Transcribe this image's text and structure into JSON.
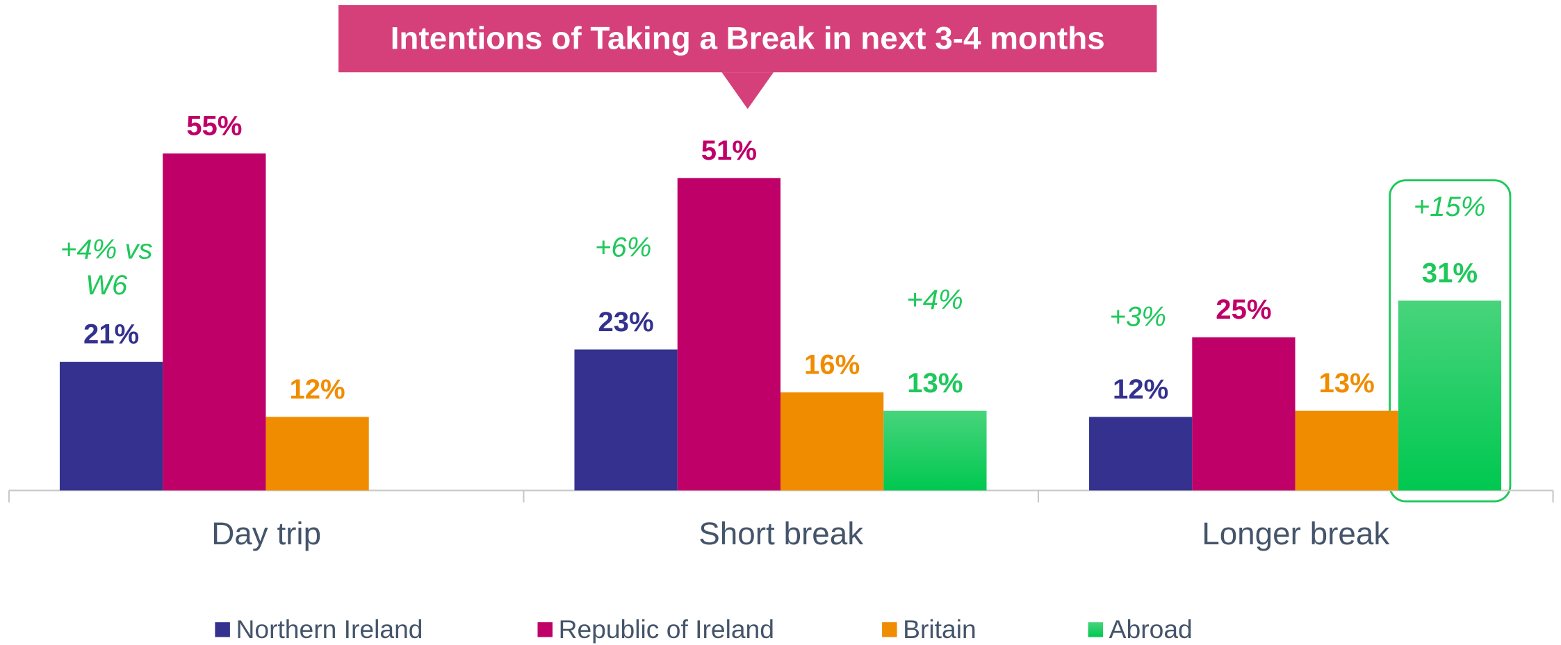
{
  "chart_data": {
    "type": "bar",
    "title": "Intentions of Taking a Break in next 3-4 months",
    "categories": [
      "Day trip",
      "Short break",
      "Longer break"
    ],
    "series": [
      {
        "name": "Northern Ireland",
        "color": "#34318f",
        "values": [
          21,
          23,
          12
        ],
        "value_labels": [
          "21%",
          "23%",
          "12%"
        ]
      },
      {
        "name": "Republic of Ireland",
        "color": "#bf0068",
        "values": [
          55,
          51,
          25
        ],
        "value_labels": [
          "55%",
          "51%",
          "25%"
        ]
      },
      {
        "name": "Britain",
        "color": "#f08c00",
        "values": [
          12,
          16,
          13
        ],
        "value_labels": [
          "12%",
          "16%",
          "13%"
        ]
      },
      {
        "name": "Abroad",
        "color": "#1ecf64",
        "values": [
          null,
          13,
          31
        ],
        "value_labels": [
          null,
          "13%",
          "31%"
        ]
      }
    ],
    "ylim": [
      0,
      60
    ],
    "annotations": [
      "+4% vs W6",
      "+6%",
      "+4%",
      "+3%",
      "+15%"
    ],
    "legend": "bottom"
  }
}
